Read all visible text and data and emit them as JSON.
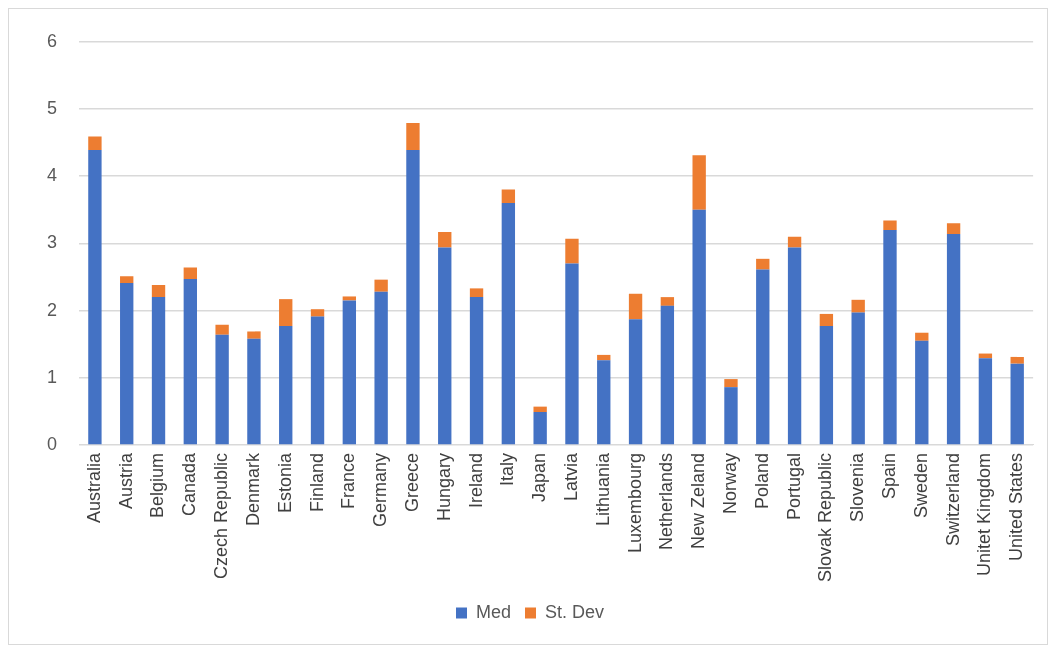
{
  "chart_data": {
    "type": "bar",
    "stacked": true,
    "categories": [
      "Australia",
      "Austria",
      "Belgium",
      "Canada",
      "Czech Republic",
      "Denmark",
      "Estonia",
      "Finland",
      "France",
      "Germany",
      "Greece",
      "Hungary",
      "Ireland",
      "Italy",
      "Japan",
      "Latvia",
      "Lithuania",
      "Luxembourg",
      "Netherlands",
      "New Zeland",
      "Norway",
      "Poland",
      "Portugal",
      "Slovak Republic",
      "Slovenia",
      "Spain",
      "Sweden",
      "Switzerland",
      "Unitet Kingdom",
      "United States"
    ],
    "series": [
      {
        "name": "Med",
        "color": "#4472c4",
        "values": [
          4.39,
          2.41,
          2.2,
          2.47,
          1.64,
          1.58,
          1.77,
          1.91,
          2.15,
          2.28,
          4.39,
          2.94,
          2.2,
          3.6,
          0.49,
          2.7,
          1.26,
          1.87,
          2.07,
          3.5,
          0.86,
          2.61,
          2.94,
          1.77,
          1.97,
          3.2,
          1.55,
          3.14,
          1.29,
          1.21
        ]
      },
      {
        "name": "St. Dev",
        "color": "#ed7d31",
        "values": [
          0.2,
          0.1,
          0.18,
          0.17,
          0.15,
          0.11,
          0.4,
          0.11,
          0.06,
          0.18,
          0.4,
          0.23,
          0.13,
          0.2,
          0.08,
          0.37,
          0.08,
          0.38,
          0.13,
          0.81,
          0.12,
          0.16,
          0.16,
          0.18,
          0.19,
          0.14,
          0.12,
          0.16,
          0.07,
          0.1
        ]
      }
    ],
    "ylim": [
      0,
      6
    ],
    "yticks": [
      0,
      1,
      2,
      3,
      4,
      5,
      6
    ],
    "grid": "y",
    "legend": "bottom"
  }
}
